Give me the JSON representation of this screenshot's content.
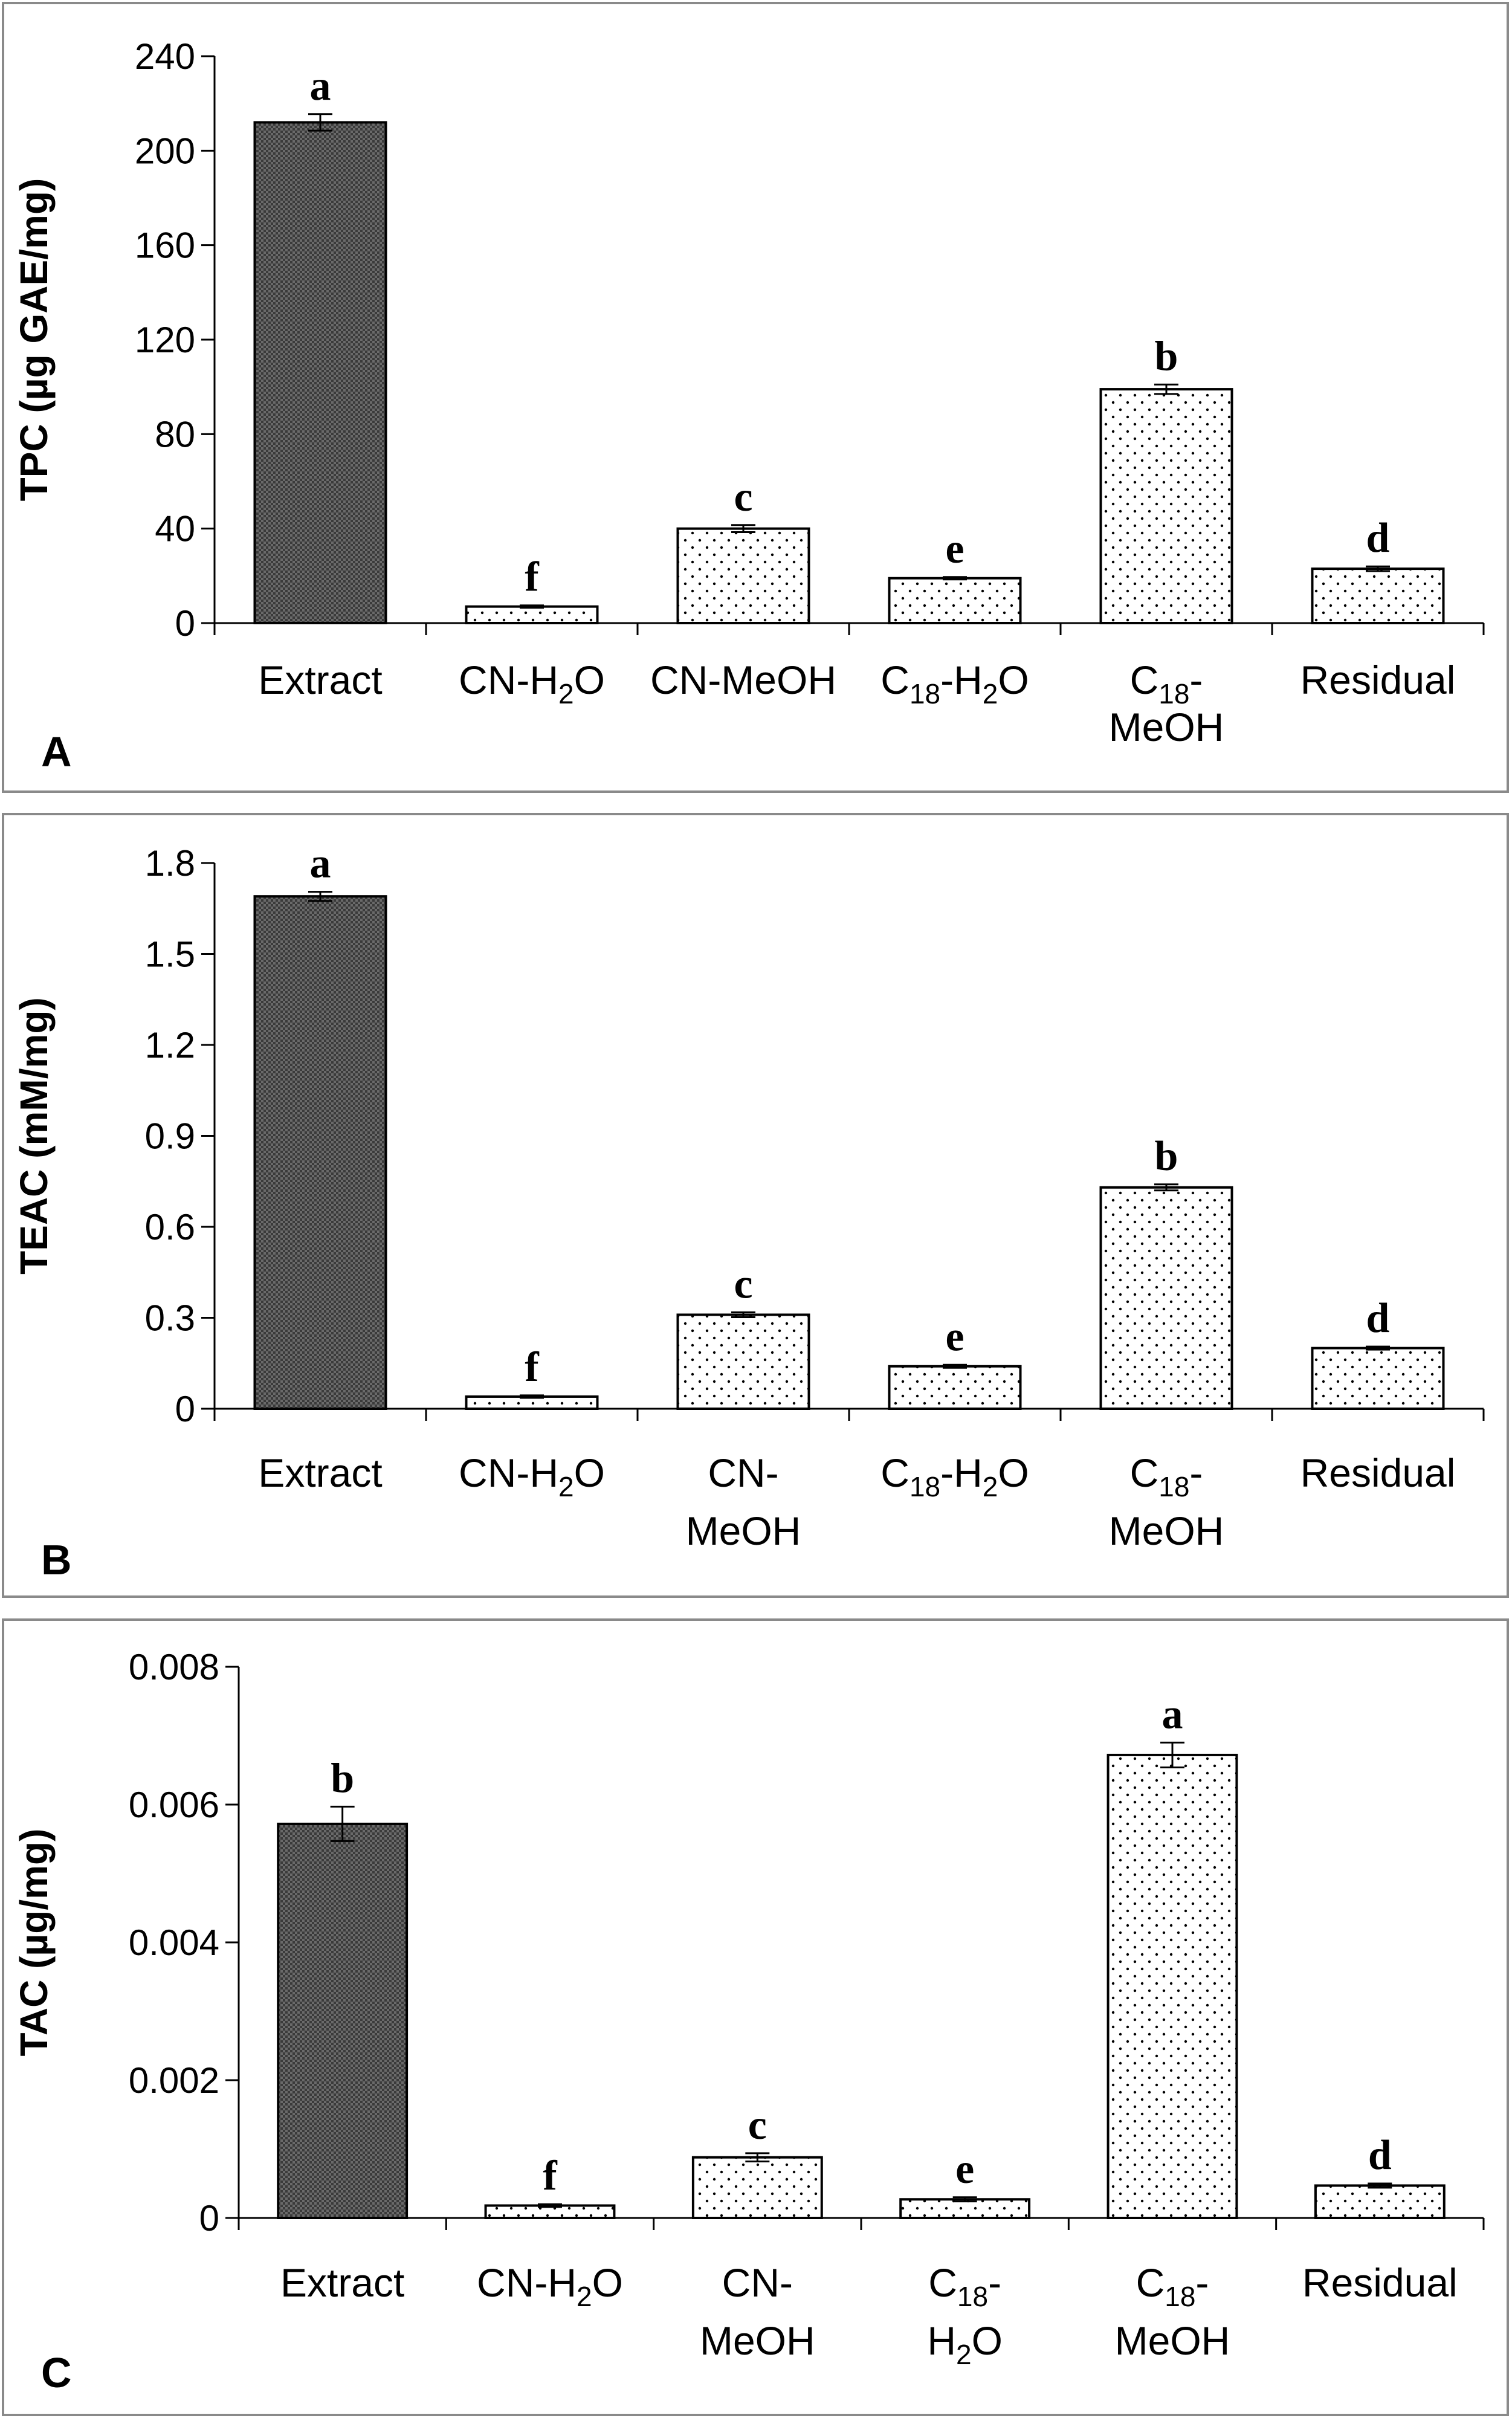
{
  "chart_data": [
    {
      "type": "bar",
      "panel": "A",
      "ylabel": "TPC (µg GAE/mg)",
      "ylim": [
        0,
        240
      ],
      "yticks": [
        "0",
        "40",
        "80",
        "120",
        "160",
        "200",
        "240"
      ],
      "categories": [
        "Extract",
        "CN-H2O",
        "CN-MeOH",
        "C18-H2O",
        "C18-MeOH",
        "Residual"
      ],
      "values": [
        212,
        7,
        40,
        19,
        99,
        23
      ],
      "errors": [
        3.5,
        0.5,
        1.5,
        0.5,
        2.0,
        1.0
      ],
      "significance": [
        "a",
        "f",
        "c",
        "e",
        "b",
        "d"
      ]
    },
    {
      "type": "bar",
      "panel": "B",
      "ylabel": "TEAC (mM/mg)",
      "ylim": [
        0,
        1.8
      ],
      "yticks": [
        "0",
        "0.3",
        "0.6",
        "0.9",
        "1.2",
        "1.5",
        "1.8"
      ],
      "categories": [
        "Extract",
        "CN-H2O",
        "CN-MeOH",
        "C18-H2O",
        "C18-MeOH",
        "Residual"
      ],
      "values": [
        1.69,
        0.04,
        0.31,
        0.14,
        0.73,
        0.2
      ],
      "errors": [
        0.015,
        0.004,
        0.008,
        0.005,
        0.01,
        0.005
      ],
      "significance": [
        "a",
        "f",
        "c",
        "e",
        "b",
        "d"
      ]
    },
    {
      "type": "bar",
      "panel": "C",
      "ylabel": "TAC (µg/mg)",
      "ylim": [
        0,
        0.008
      ],
      "yticks": [
        "0",
        "0.002",
        "0.004",
        "0.006",
        "0.008"
      ],
      "categories": [
        "Extract",
        "CN-H2O",
        "CN-MeOH",
        "C18-H2O",
        "C18-MeOH",
        "Residual"
      ],
      "values": [
        0.00572,
        0.00018,
        0.00088,
        0.00027,
        0.00672,
        0.00047
      ],
      "errors": [
        0.00025,
        2e-05,
        6e-05,
        3e-05,
        0.00018,
        3e-05
      ],
      "significance": [
        "b",
        "f",
        "c",
        "e",
        "a",
        "d"
      ]
    }
  ],
  "colors": {
    "extract_fill": "#5a5a5a",
    "fraction_fill": "#ffffff",
    "stroke": "#000000",
    "frame": "#8a8a8a"
  }
}
